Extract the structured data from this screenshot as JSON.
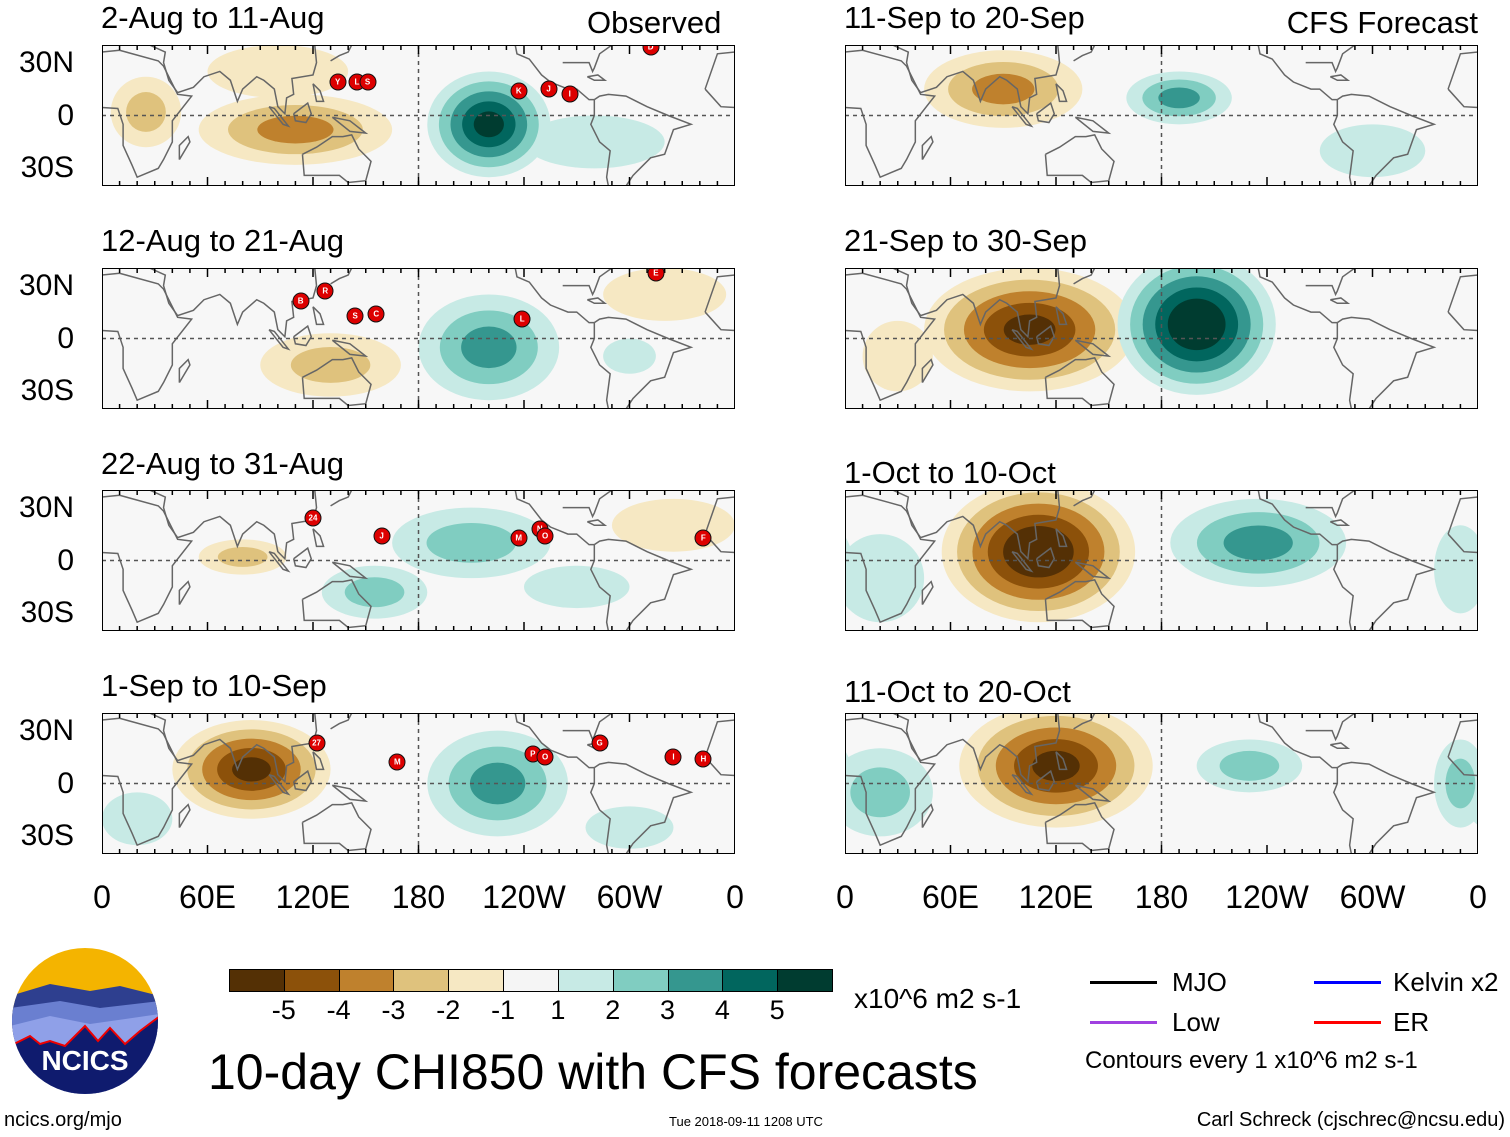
{
  "title": "10-day CHI850 with CFS forecasts",
  "footer": {
    "url": "ncics.org/mjo",
    "timestamp": "Tue 2018-09-11 1208 UTC",
    "author": "Carl Schreck (cjschrec@ncsu.edu)"
  },
  "logo": {
    "text": "NCICS"
  },
  "column_labels": {
    "left": "Observed",
    "right": "CFS Forecast"
  },
  "lat_labels": [
    "30N",
    "0",
    "30S"
  ],
  "lon_labels": [
    "0",
    "60E",
    "120E",
    "180",
    "120W",
    "60W",
    "0"
  ],
  "colorbar": {
    "colors": [
      "#543005",
      "#8c510a",
      "#bf812d",
      "#dfc27d",
      "#f6e8c3",
      "#f5f5f5",
      "#c7eae5",
      "#80cdc1",
      "#35978f",
      "#01665e",
      "#003c30"
    ],
    "labels": [
      "-5",
      "-4",
      "-3",
      "-2",
      "-1",
      "1",
      "2",
      "3",
      "4",
      "5"
    ],
    "units": "x10^6 m2 s-1"
  },
  "legend": {
    "items": [
      {
        "label": "MJO",
        "color": "#000000"
      },
      {
        "label": "Kelvin x2",
        "color": "#0000ff"
      },
      {
        "label": "Low",
        "color": "#a040e0"
      },
      {
        "label": "ER",
        "color": "#ff0000"
      }
    ],
    "note": "Contours every 1 x10^6 m2 s-1"
  },
  "chart_data": {
    "type": "heatmap",
    "variable": "CHI850 anomaly (x10^6 m2 s-1)",
    "xlim": [
      0,
      360
    ],
    "ylim": [
      -40,
      40
    ],
    "panels": [
      {
        "title": "2-Aug to 11-Aug",
        "column": "left",
        "row": 0,
        "anomalies": [
          {
            "lon": 110,
            "lat": -8,
            "rlon": 55,
            "rlat": 20,
            "value": -3
          },
          {
            "lon": 25,
            "lat": 2,
            "rlon": 20,
            "rlat": 20,
            "value": -2
          },
          {
            "lon": 100,
            "lat": 25,
            "rlon": 40,
            "rlat": 15,
            "value": -1
          },
          {
            "lon": 220,
            "lat": -5,
            "rlon": 35,
            "rlat": 30,
            "value": 5
          },
          {
            "lon": 280,
            "lat": -15,
            "rlon": 40,
            "rlat": 15,
            "value": 1
          }
        ],
        "storms": [
          {
            "name": "Y",
            "lon": 134,
            "lat": 19
          },
          {
            "name": "L",
            "lon": 145,
            "lat": 19
          },
          {
            "name": "S",
            "lon": 151,
            "lat": 19
          },
          {
            "name": "K",
            "lon": 237,
            "lat": 14
          },
          {
            "name": "J",
            "lon": 254,
            "lat": 15
          },
          {
            "name": "I",
            "lon": 266,
            "lat": 12
          },
          {
            "name": "D",
            "lon": 312,
            "lat": 39
          }
        ]
      },
      {
        "title": "12-Aug to 21-Aug",
        "column": "left",
        "row": 1,
        "anomalies": [
          {
            "lon": 130,
            "lat": -15,
            "rlon": 40,
            "rlat": 18,
            "value": -2
          },
          {
            "lon": 320,
            "lat": 25,
            "rlon": 35,
            "rlat": 15,
            "value": -1
          },
          {
            "lon": 220,
            "lat": -5,
            "rlon": 40,
            "rlat": 30,
            "value": 3
          },
          {
            "lon": 300,
            "lat": -10,
            "rlon": 15,
            "rlat": 10,
            "value": 1
          }
        ],
        "storms": [
          {
            "name": "B",
            "lon": 113,
            "lat": 21
          },
          {
            "name": "R",
            "lon": 127,
            "lat": 27
          },
          {
            "name": "S",
            "lon": 144,
            "lat": 13
          },
          {
            "name": "C",
            "lon": 156,
            "lat": 14
          },
          {
            "name": "L",
            "lon": 239,
            "lat": 11
          },
          {
            "name": "E",
            "lon": 315,
            "lat": 37
          }
        ]
      },
      {
        "title": "22-Aug to 31-Aug",
        "column": "left",
        "row": 2,
        "anomalies": [
          {
            "lon": 80,
            "lat": 2,
            "rlon": 25,
            "rlat": 10,
            "value": -2
          },
          {
            "lon": 325,
            "lat": 20,
            "rlon": 35,
            "rlat": 15,
            "value": -1
          },
          {
            "lon": 155,
            "lat": -18,
            "rlon": 30,
            "rlat": 15,
            "value": 2
          },
          {
            "lon": 210,
            "lat": 10,
            "rlon": 45,
            "rlat": 20,
            "value": 2
          },
          {
            "lon": 270,
            "lat": -15,
            "rlon": 30,
            "rlat": 12,
            "value": 1
          }
        ],
        "storms": [
          {
            "name": "24",
            "lon": 120,
            "lat": 24
          },
          {
            "name": "J",
            "lon": 159,
            "lat": 14
          },
          {
            "name": "M",
            "lon": 237,
            "lat": 13
          },
          {
            "name": "N",
            "lon": 249,
            "lat": 18
          },
          {
            "name": "O",
            "lon": 252,
            "lat": 14
          },
          {
            "name": "F",
            "lon": 342,
            "lat": 13
          }
        ]
      },
      {
        "title": "1-Sep to 10-Sep",
        "column": "left",
        "row": 3,
        "anomalies": [
          {
            "lon": 85,
            "lat": 8,
            "rlon": 45,
            "rlat": 28,
            "value": -5
          },
          {
            "lon": 225,
            "lat": 0,
            "rlon": 40,
            "rlat": 30,
            "value": 3
          },
          {
            "lon": 20,
            "lat": -20,
            "rlon": 20,
            "rlat": 15,
            "value": 1
          },
          {
            "lon": 300,
            "lat": -25,
            "rlon": 25,
            "rlat": 12,
            "value": 1
          }
        ],
        "storms": [
          {
            "name": "27",
            "lon": 122,
            "lat": 23
          },
          {
            "name": "M",
            "lon": 168,
            "lat": 12
          },
          {
            "name": "P",
            "lon": 245,
            "lat": 17
          },
          {
            "name": "O",
            "lon": 252,
            "lat": 15
          },
          {
            "name": "G",
            "lon": 283,
            "lat": 23
          },
          {
            "name": "I",
            "lon": 325,
            "lat": 15
          },
          {
            "name": "H",
            "lon": 342,
            "lat": 14
          }
        ]
      },
      {
        "title": "11-Sep to 20-Sep",
        "column": "right",
        "row": 0,
        "anomalies": [
          {
            "lon": 90,
            "lat": 15,
            "rlon": 45,
            "rlat": 22,
            "value": -3
          },
          {
            "lon": 190,
            "lat": 10,
            "rlon": 30,
            "rlat": 15,
            "value": 3
          },
          {
            "lon": 300,
            "lat": -20,
            "rlon": 30,
            "rlat": 15,
            "value": 1
          }
        ],
        "storms": []
      },
      {
        "title": "21-Sep to 30-Sep",
        "column": "right",
        "row": 1,
        "anomalies": [
          {
            "lon": 105,
            "lat": 5,
            "rlon": 60,
            "rlat": 35,
            "value": -5
          },
          {
            "lon": 200,
            "lat": 8,
            "rlon": 45,
            "rlat": 40,
            "value": 6
          },
          {
            "lon": 30,
            "lat": -10,
            "rlon": 20,
            "rlat": 20,
            "value": -1
          }
        ],
        "storms": []
      },
      {
        "title": "1-Oct to 10-Oct",
        "column": "right",
        "row": 2,
        "anomalies": [
          {
            "lon": 110,
            "lat": 5,
            "rlon": 55,
            "rlat": 40,
            "value": -6
          },
          {
            "lon": 235,
            "lat": 10,
            "rlon": 50,
            "rlat": 25,
            "value": 3
          },
          {
            "lon": 20,
            "lat": -10,
            "rlon": 25,
            "rlat": 25,
            "value": 1
          },
          {
            "lon": 350,
            "lat": -5,
            "rlon": 15,
            "rlat": 25,
            "value": 1
          }
        ],
        "storms": []
      },
      {
        "title": "11-Oct to 20-Oct",
        "column": "right",
        "row": 3,
        "anomalies": [
          {
            "lon": 120,
            "lat": 10,
            "rlon": 55,
            "rlat": 35,
            "value": -5
          },
          {
            "lon": 20,
            "lat": -5,
            "rlon": 30,
            "rlat": 25,
            "value": 2
          },
          {
            "lon": 230,
            "lat": 10,
            "rlon": 30,
            "rlat": 15,
            "value": 2
          },
          {
            "lon": 350,
            "lat": 0,
            "rlon": 15,
            "rlat": 25,
            "value": 2
          }
        ],
        "storms": []
      }
    ]
  }
}
